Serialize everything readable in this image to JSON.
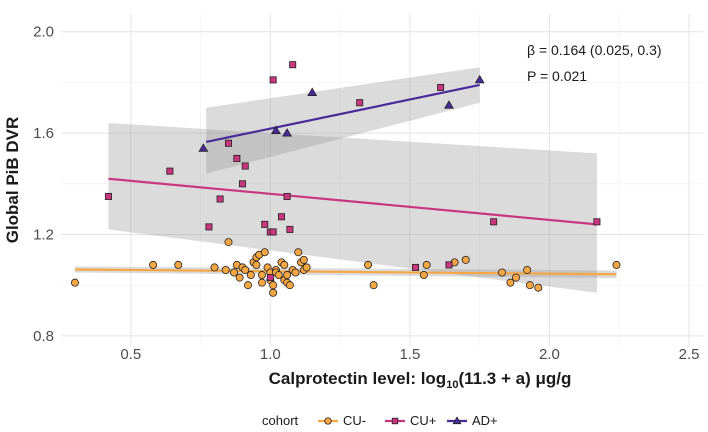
{
  "chart_data": {
    "type": "scatter",
    "xlabel_prefix": "Calprotectin level: log",
    "xlabel_sub": "10",
    "xlabel_suffix": "(11.3 + a) μg/g",
    "ylabel": "Global PiB DVR",
    "xlim": [
      0.25,
      2.55
    ],
    "ylim": [
      0.76,
      2.07
    ],
    "xticks": [
      0.5,
      1.0,
      1.5,
      2.0,
      2.5
    ],
    "xtick_labels": [
      "0.5",
      "1.0",
      "1.5",
      "2.0",
      "2.5"
    ],
    "yticks": [
      0.8,
      1.2,
      1.6,
      2.0
    ],
    "ytick_labels": [
      "0.8",
      "1.2",
      "1.6",
      "2.0"
    ],
    "annotation": {
      "beta": "β = 0.164 (0.025, 0.3)",
      "p": "P = 0.021"
    },
    "legend": {
      "title": "cohort",
      "position": "bottom"
    },
    "series": [
      {
        "name": "CU-",
        "color": "#F6A643",
        "marker": "circle",
        "fit": {
          "x": [
            0.3,
            2.24
          ],
          "y": [
            1.062,
            1.043
          ],
          "ci_upper": [
            1.074,
            1.058
          ],
          "ci_lower": [
            1.05,
            1.028
          ]
        },
        "points": [
          [
            0.3,
            1.01
          ],
          [
            0.58,
            1.08
          ],
          [
            0.67,
            1.08
          ],
          [
            0.8,
            1.07
          ],
          [
            0.84,
            1.06
          ],
          [
            0.87,
            1.05
          ],
          [
            0.88,
            1.08
          ],
          [
            0.89,
            1.03
          ],
          [
            0.9,
            1.07
          ],
          [
            0.91,
            1.06
          ],
          [
            0.92,
            1.0
          ],
          [
            0.93,
            1.04
          ],
          [
            0.94,
            1.09
          ],
          [
            0.95,
            1.08
          ],
          [
            0.95,
            1.11
          ],
          [
            0.96,
            1.12
          ],
          [
            0.97,
            1.04
          ],
          [
            0.97,
            1.01
          ],
          [
            0.98,
            1.13
          ],
          [
            0.99,
            1.07
          ],
          [
            1.0,
            1.05
          ],
          [
            1.0,
            1.02
          ],
          [
            1.01,
            1.0
          ],
          [
            1.01,
            0.97
          ],
          [
            1.02,
            1.06
          ],
          [
            1.02,
            1.05
          ],
          [
            1.03,
            1.04
          ],
          [
            1.04,
            1.09
          ],
          [
            1.05,
            1.08
          ],
          [
            1.05,
            1.02
          ],
          [
            1.06,
            1.01
          ],
          [
            1.06,
            1.04
          ],
          [
            1.07,
            1.0
          ],
          [
            1.08,
            1.06
          ],
          [
            1.09,
            1.05
          ],
          [
            1.1,
            1.13
          ],
          [
            1.11,
            1.09
          ],
          [
            1.12,
            1.06
          ],
          [
            1.12,
            1.1
          ],
          [
            1.13,
            1.07
          ],
          [
            1.35,
            1.08
          ],
          [
            1.37,
            1.0
          ],
          [
            1.55,
            1.04
          ],
          [
            1.56,
            1.08
          ],
          [
            1.66,
            1.09
          ],
          [
            1.7,
            1.1
          ],
          [
            1.83,
            1.05
          ],
          [
            1.86,
            1.01
          ],
          [
            1.88,
            1.03
          ],
          [
            1.92,
            1.06
          ],
          [
            1.93,
            1.0
          ],
          [
            1.96,
            0.99
          ],
          [
            2.24,
            1.08
          ],
          [
            0.85,
            1.17
          ]
        ]
      },
      {
        "name": "CU+",
        "color": "#C7367E",
        "marker": "square",
        "fit": {
          "x": [
            0.42,
            2.17
          ],
          "y": [
            1.42,
            1.24
          ],
          "ci_upper": [
            1.64,
            1.52
          ],
          "ci_lower": [
            1.22,
            0.97
          ]
        },
        "points": [
          [
            0.42,
            1.35
          ],
          [
            0.64,
            1.45
          ],
          [
            0.82,
            1.34
          ],
          [
            0.85,
            1.56
          ],
          [
            0.88,
            1.5
          ],
          [
            0.9,
            1.4
          ],
          [
            0.91,
            1.47
          ],
          [
            0.98,
            1.24
          ],
          [
            1.0,
            1.21
          ],
          [
            1.01,
            1.21
          ],
          [
            1.04,
            1.27
          ],
          [
            1.06,
            1.35
          ],
          [
            1.07,
            1.22
          ],
          [
            1.08,
            1.87
          ],
          [
            1.01,
            1.81
          ],
          [
            1.32,
            1.72
          ],
          [
            1.61,
            1.78
          ],
          [
            0.78,
            1.23
          ],
          [
            1.52,
            1.07
          ],
          [
            1.64,
            1.08
          ],
          [
            1.8,
            1.25
          ],
          [
            2.17,
            1.25
          ],
          [
            1.0,
            1.03
          ]
        ]
      },
      {
        "name": "AD+",
        "color": "#4A2A9A",
        "marker": "triangle",
        "fit": {
          "x": [
            0.77,
            1.75
          ],
          "y": [
            1.565,
            1.79
          ],
          "ci_upper": [
            1.7,
            1.86
          ],
          "ci_lower": [
            1.44,
            1.72
          ]
        },
        "points": [
          [
            0.76,
            1.54
          ],
          [
            1.02,
            1.61
          ],
          [
            1.06,
            1.6
          ],
          [
            1.15,
            1.76
          ],
          [
            1.64,
            1.71
          ],
          [
            1.75,
            1.81
          ]
        ]
      }
    ]
  }
}
